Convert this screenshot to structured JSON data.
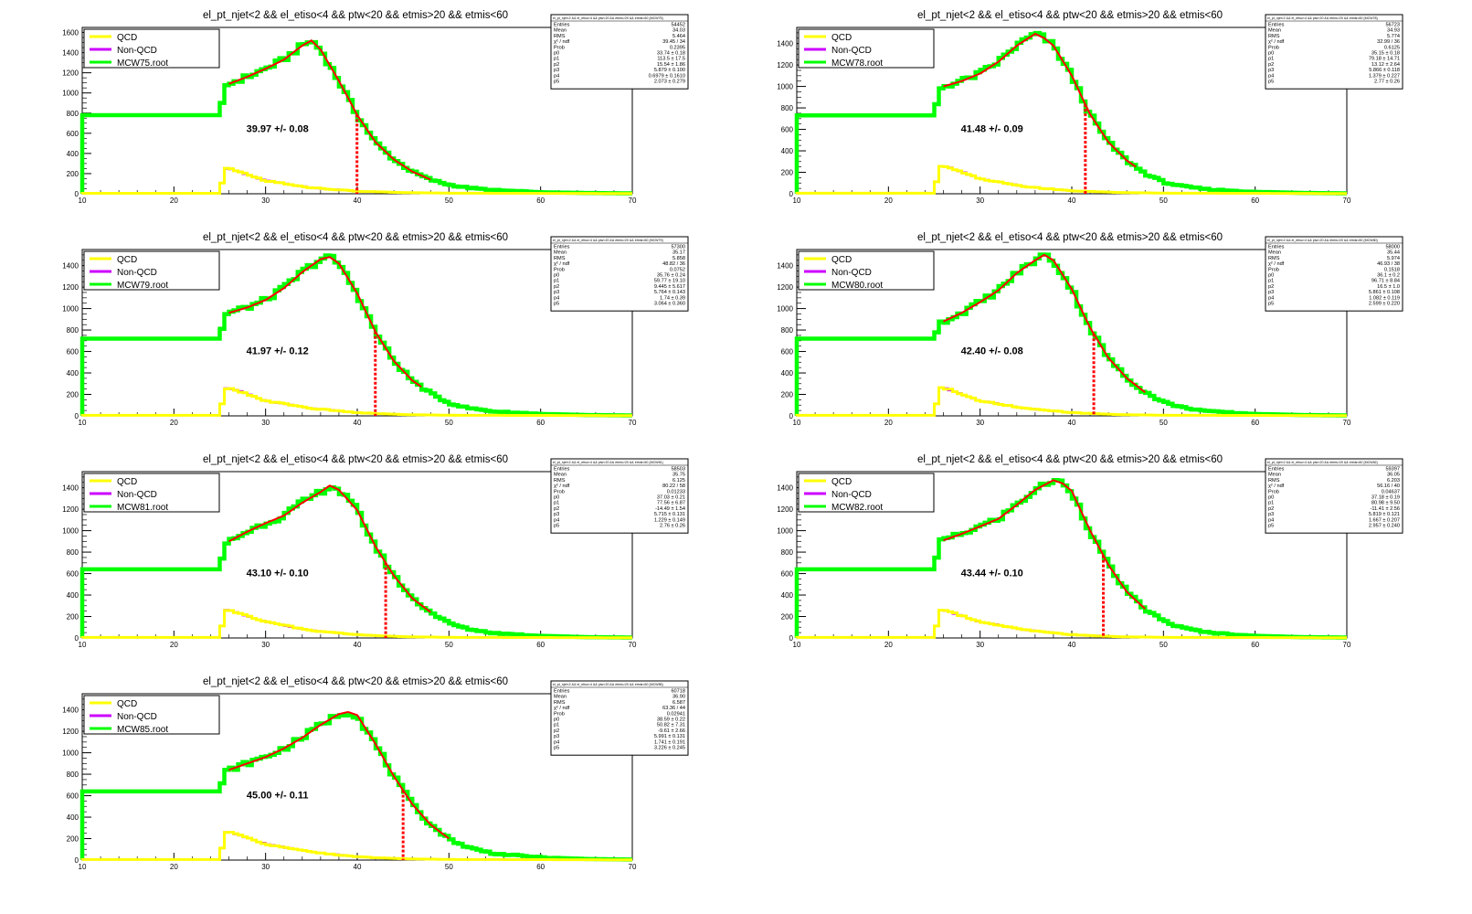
{
  "colors": {
    "qcd": "#ffff00",
    "nonqcd": "#cc00ff",
    "mc": "#00ff00",
    "fit": "#ff0000",
    "marker": "#ff0000",
    "axis": "#000000",
    "background": "#ffffff"
  },
  "chart_data": [
    {
      "type": "line",
      "title": "el_pt_njet<2 && el_etiso<4 && ptw<20 && etmis>20 && etmis<60",
      "legend": [
        "QCD",
        "Non-QCD",
        "MCW75.root"
      ],
      "legend_placement": "top-left",
      "xlim": [
        10,
        70
      ],
      "ylim": [
        0,
        1650
      ],
      "xticks": [
        "10",
        "20",
        "30",
        "40",
        "50",
        "60",
        "70"
      ],
      "yticks": [
        "0",
        "200",
        "400",
        "600",
        "800",
        "1000",
        "1200",
        "1400",
        "1600"
      ],
      "mc_curve": {
        "x": [
          25.0,
          25.6,
          26,
          28,
          30,
          32,
          34,
          35,
          36,
          38,
          40,
          42,
          44,
          46,
          48,
          50,
          52,
          55,
          60,
          65,
          70
        ],
        "y": [
          780,
          1070,
          1090,
          1160,
          1240,
          1330,
          1470,
          1520,
          1430,
          1120,
          780,
          510,
          340,
          220,
          140,
          90,
          60,
          35,
          15,
          8,
          4
        ]
      },
      "qcd_curve": {
        "x": [
          10,
          25.0,
          25.6,
          26.5,
          30,
          35,
          40,
          45,
          50,
          70
        ],
        "y": [
          5,
          5,
          250,
          240,
          130,
          60,
          25,
          12,
          6,
          2
        ]
      },
      "fit_range": [
        26,
        48
      ],
      "marker_x": 39.97,
      "annotation": "39.97 +/-  0.08",
      "stats": {
        "header": "el_pt_njet<2 && el_etiso<4 && ptw<20 && etmis>20 && etmis<60 {MCW75}",
        "rows": [
          [
            "Entries",
            "54452"
          ],
          [
            "Mean",
            "34.03"
          ],
          [
            "RMS",
            "5.464"
          ],
          [
            "χ² / ndf",
            "39.45 / 34"
          ],
          [
            "Prob",
            "0.2395"
          ],
          [
            "p0",
            "33.74 ± 0.18"
          ],
          [
            "p1",
            "113.5 ± 17.5"
          ],
          [
            "p2",
            "15.54 ± 1.86"
          ],
          [
            "p3",
            "5.879 ± 0.100"
          ],
          [
            "p4",
            "0.6979 ± 0.1610"
          ],
          [
            "p5",
            "2.073 ± 0.279"
          ]
        ]
      }
    },
    {
      "type": "line",
      "title": "el_pt_njet<2 && el_etiso<4 && ptw<20 && etmis>20 && etmis<60",
      "legend": [
        "QCD",
        "Non-QCD",
        "MCW78.root"
      ],
      "legend_placement": "top-left",
      "xlim": [
        10,
        70
      ],
      "ylim": [
        0,
        1550
      ],
      "xticks": [
        "10",
        "20",
        "30",
        "40",
        "50",
        "60",
        "70"
      ],
      "yticks": [
        "0",
        "200",
        "400",
        "600",
        "800",
        "1000",
        "1200",
        "1400"
      ],
      "mc_curve": {
        "x": [
          25.0,
          25.6,
          26,
          28,
          30,
          32,
          34,
          36,
          37,
          38,
          40,
          42,
          44,
          46,
          48,
          50,
          52,
          55,
          60,
          65,
          70
        ],
        "y": [
          730,
          980,
          1000,
          1050,
          1120,
          1230,
          1380,
          1490,
          1450,
          1380,
          1100,
          740,
          480,
          310,
          190,
          110,
          70,
          40,
          18,
          8,
          4
        ]
      },
      "qcd_curve": {
        "x": [
          10,
          25.0,
          25.6,
          26.5,
          30,
          35,
          40,
          45,
          50,
          70
        ],
        "y": [
          5,
          5,
          260,
          250,
          140,
          65,
          28,
          12,
          6,
          2
        ]
      },
      "fit_range": [
        26,
        47
      ],
      "marker_x": 41.48,
      "annotation": "41.48 +/-  0.09",
      "stats": {
        "header": "el_pt_njet<2 && el_etiso<4 && ptw<20 && etmis>20 && etmis<60 {MCW78}",
        "rows": [
          [
            "Entries",
            "56723"
          ],
          [
            "Mean",
            "34.93"
          ],
          [
            "RMS",
            "5.774"
          ],
          [
            "χ² / ndf",
            "32.99 / 36"
          ],
          [
            "Prob",
            "0.6125"
          ],
          [
            "p0",
            "35.15 ± 0.18"
          ],
          [
            "p1",
            "79.18 ± 14.71"
          ],
          [
            "p2",
            "13.12 ± 2.64"
          ],
          [
            "p3",
            "5.866 ± 0.118"
          ],
          [
            "p4",
            "1.379 ± 0.227"
          ],
          [
            "p5",
            "2.77 ± 0.26"
          ]
        ]
      }
    },
    {
      "type": "line",
      "title": "el_pt_njet<2 && el_etiso<4 && ptw<20 && etmis>20 && etmis<60",
      "legend": [
        "QCD",
        "Non-QCD",
        "MCW79.root"
      ],
      "legend_placement": "top-left",
      "xlim": [
        10,
        70
      ],
      "ylim": [
        0,
        1550
      ],
      "xticks": [
        "10",
        "20",
        "30",
        "40",
        "50",
        "60",
        "70"
      ],
      "yticks": [
        "0",
        "200",
        "400",
        "600",
        "800",
        "1000",
        "1200",
        "1400"
      ],
      "mc_curve": {
        "x": [
          25.0,
          25.6,
          26,
          28,
          30,
          32,
          34,
          36,
          37,
          38,
          40,
          42,
          44,
          46,
          48,
          50,
          52,
          55,
          60,
          65,
          70
        ],
        "y": [
          720,
          940,
          960,
          1010,
          1080,
          1190,
          1340,
          1460,
          1480,
          1420,
          1140,
          780,
          510,
          330,
          210,
          120,
          75,
          40,
          18,
          8,
          4
        ]
      },
      "qcd_curve": {
        "x": [
          10,
          25.0,
          25.6,
          26.5,
          30,
          35,
          40,
          45,
          50,
          70
        ],
        "y": [
          5,
          5,
          260,
          250,
          140,
          70,
          30,
          12,
          6,
          2
        ]
      },
      "fit_range": [
        26,
        47
      ],
      "marker_x": 41.97,
      "annotation": "41.97 +/-  0.12",
      "stats": {
        "header": "el_pt_njet<2 && el_etiso<4 && ptw<20 && etmis>20 && etmis<60 {MCW79}",
        "rows": [
          [
            "Entries",
            "57300"
          ],
          [
            "Mean",
            "35.17"
          ],
          [
            "RMS",
            "5.858"
          ],
          [
            "χ² / ndf",
            "48.82 / 36"
          ],
          [
            "Prob",
            "0.0752"
          ],
          [
            "p0",
            "35.76 ± 0.24"
          ],
          [
            "p1",
            "59.77 ± 19.10"
          ],
          [
            "p2",
            "9.445 ± 5.617"
          ],
          [
            "p3",
            "5.764 ± 0.143"
          ],
          [
            "p4",
            "1.74 ± 0.39"
          ],
          [
            "p5",
            "3.064 ± 0.360"
          ]
        ]
      }
    },
    {
      "type": "line",
      "title": "el_pt_njet<2 && el_etiso<4 && ptw<20 && etmis>20 && etmis<60",
      "legend": [
        "QCD",
        "Non-QCD",
        "MCW80.root"
      ],
      "legend_placement": "top-left",
      "xlim": [
        10,
        70
      ],
      "ylim": [
        0,
        1550
      ],
      "xticks": [
        "10",
        "20",
        "30",
        "40",
        "50",
        "60",
        "70"
      ],
      "yticks": [
        "0",
        "200",
        "400",
        "600",
        "800",
        "1000",
        "1200",
        "1400"
      ],
      "mc_curve": {
        "x": [
          25.0,
          25.6,
          26,
          28,
          30,
          32,
          34,
          36,
          37,
          38,
          40,
          42,
          44,
          46,
          48,
          50,
          52,
          55,
          60,
          65,
          70
        ],
        "y": [
          720,
          860,
          880,
          960,
          1060,
          1170,
          1330,
          1450,
          1500,
          1450,
          1180,
          820,
          540,
          350,
          220,
          130,
          80,
          42,
          18,
          8,
          4
        ]
      },
      "qcd_curve": {
        "x": [
          10,
          25.0,
          25.6,
          26.5,
          30,
          35,
          40,
          45,
          50,
          70
        ],
        "y": [
          5,
          5,
          260,
          250,
          140,
          70,
          30,
          12,
          6,
          2
        ]
      },
      "fit_range": [
        26,
        48
      ],
      "marker_x": 42.4,
      "annotation": "42.40 +/-  0.08",
      "stats": {
        "header": "el_pt_njet<2 && el_etiso<4 && ptw<20 && etmis>20 && etmis<60 {MCW80}",
        "rows": [
          [
            "Entries",
            "58000"
          ],
          [
            "Mean",
            "35.44"
          ],
          [
            "RMS",
            "5.974"
          ],
          [
            "χ² / ndf",
            "46.93 / 38"
          ],
          [
            "Prob",
            "0.1518"
          ],
          [
            "p0",
            "36.1 ± 0.2"
          ],
          [
            "p1",
            "96.71 ± 8.84"
          ],
          [
            "p2",
            "16.5 ± 1.0"
          ],
          [
            "p3",
            "5.861 ± 0.108"
          ],
          [
            "p4",
            "1.082 ± 0.119"
          ],
          [
            "p5",
            "2.599 ± 0.220"
          ]
        ]
      }
    },
    {
      "type": "line",
      "title": "el_pt_njet<2 && el_etiso<4 && ptw<20 && etmis>20 && etmis<60",
      "legend": [
        "QCD",
        "Non-QCD",
        "MCW81.root"
      ],
      "legend_placement": "top-left",
      "xlim": [
        10,
        70
      ],
      "ylim": [
        0,
        1550
      ],
      "xticks": [
        "10",
        "20",
        "30",
        "40",
        "50",
        "60",
        "70"
      ],
      "yticks": [
        "0",
        "200",
        "400",
        "600",
        "800",
        "1000",
        "1200",
        "1400"
      ],
      "mc_curve": {
        "x": [
          25.0,
          25.6,
          26,
          28,
          30,
          32,
          34,
          36,
          37,
          38,
          40,
          42,
          44,
          46,
          48,
          50,
          52,
          55,
          60,
          65,
          70
        ],
        "y": [
          640,
          880,
          900,
          990,
          1070,
          1140,
          1260,
          1360,
          1420,
          1380,
          1190,
          850,
          580,
          370,
          240,
          140,
          85,
          45,
          20,
          8,
          4
        ]
      },
      "qcd_curve": {
        "x": [
          10,
          25.0,
          25.6,
          26.5,
          30,
          35,
          40,
          45,
          50,
          70
        ],
        "y": [
          5,
          5,
          260,
          250,
          150,
          70,
          30,
          12,
          6,
          2
        ]
      },
      "fit_range": [
        26,
        48
      ],
      "marker_x": 43.1,
      "annotation": "43.10 +/-  0.10",
      "stats": {
        "header": "el_pt_njet<2 && el_etiso<4 && ptw<20 && etmis>20 && etmis<60 {MCW81}",
        "rows": [
          [
            "Entries",
            "58503"
          ],
          [
            "Mean",
            "35.75"
          ],
          [
            "RMS",
            "6.125"
          ],
          [
            "χ² / ndf",
            "80.22 / 58"
          ],
          [
            "Prob",
            "0.01233"
          ],
          [
            "p0",
            "37.03 ± 0.21"
          ],
          [
            "p1",
            "77.56 ± 6.87"
          ],
          [
            "p2",
            "-14.49 ± 1.54"
          ],
          [
            "p3",
            "5.715 ± 0.131"
          ],
          [
            "p4",
            "1.229 ± 0.149"
          ],
          [
            "p5",
            "2.76 ± 0.26"
          ]
        ]
      }
    },
    {
      "type": "line",
      "title": "el_pt_njet<2 && el_etiso<4 && ptw<20 && etmis>20 && etmis<60",
      "legend": [
        "QCD",
        "Non-QCD",
        "MCW82.root"
      ],
      "legend_placement": "top-left",
      "xlim": [
        10,
        70
      ],
      "ylim": [
        0,
        1550
      ],
      "xticks": [
        "10",
        "20",
        "30",
        "40",
        "50",
        "60",
        "70"
      ],
      "yticks": [
        "0",
        "200",
        "400",
        "600",
        "800",
        "1000",
        "1200",
        "1400"
      ],
      "mc_curve": {
        "x": [
          25.0,
          25.6,
          26,
          28,
          30,
          32,
          34,
          36,
          38,
          39,
          40,
          42,
          44,
          46,
          48,
          50,
          52,
          55,
          60,
          65,
          70
        ],
        "y": [
          640,
          900,
          910,
          970,
          1040,
          1110,
          1240,
          1380,
          1470,
          1440,
          1370,
          1000,
          680,
          430,
          270,
          160,
          95,
          50,
          20,
          8,
          4
        ]
      },
      "qcd_curve": {
        "x": [
          10,
          25.0,
          25.6,
          26.5,
          30,
          35,
          40,
          45,
          50,
          70
        ],
        "y": [
          5,
          5,
          260,
          250,
          150,
          75,
          30,
          12,
          6,
          2
        ]
      },
      "fit_range": [
        26,
        48
      ],
      "marker_x": 43.44,
      "annotation": "43.44 +/-  0.10",
      "stats": {
        "header": "el_pt_njet<2 && el_etiso<4 && ptw<20 && etmis>20 && etmis<60 {MCW82}",
        "rows": [
          [
            "Entries",
            "59397"
          ],
          [
            "Mean",
            "36.05"
          ],
          [
            "RMS",
            "6.203"
          ],
          [
            "χ² / ndf",
            "56.16 / 40"
          ],
          [
            "Prob",
            "0.04637"
          ],
          [
            "p0",
            "37.18 ± 0.19"
          ],
          [
            "p1",
            "80.98 ± 9.50"
          ],
          [
            "p2",
            "-11.41 ± 2.56"
          ],
          [
            "p3",
            "5.819 ± 0.121"
          ],
          [
            "p4",
            "1.667 ± 0.207"
          ],
          [
            "p5",
            "2.957 ± 0.240"
          ]
        ]
      }
    },
    {
      "type": "line",
      "title": "el_pt_njet<2 && el_etiso<4 && ptw<20 && etmis>20 && etmis<60",
      "legend": [
        "QCD",
        "Non-QCD",
        "MCW85.root"
      ],
      "legend_placement": "top-left",
      "xlim": [
        10,
        70
      ],
      "ylim": [
        0,
        1550
      ],
      "xticks": [
        "10",
        "20",
        "30",
        "40",
        "50",
        "60",
        "70"
      ],
      "yticks": [
        "0",
        "200",
        "400",
        "600",
        "800",
        "1000",
        "1200",
        "1400"
      ],
      "mc_curve": {
        "x": [
          25.0,
          25.6,
          26,
          28,
          30,
          32,
          34,
          36,
          38,
          39,
          40,
          42,
          44,
          46,
          48,
          50,
          52,
          55,
          60,
          65,
          70
        ],
        "y": [
          640,
          820,
          840,
          900,
          960,
          1040,
          1140,
          1260,
          1360,
          1380,
          1350,
          1080,
          780,
          520,
          330,
          200,
          120,
          60,
          25,
          10,
          5
        ]
      },
      "qcd_curve": {
        "x": [
          10,
          25.0,
          25.6,
          26.5,
          30,
          35,
          40,
          45,
          50,
          70
        ],
        "y": [
          5,
          5,
          260,
          250,
          150,
          75,
          30,
          12,
          6,
          2
        ]
      },
      "fit_range": [
        26,
        50
      ],
      "marker_x": 45.0,
      "annotation": "45.00 +/-  0.11",
      "stats": {
        "header": "el_pt_njet<2 && el_etiso<4 && ptw<20 && etmis>20 && etmis<60 {MCW85}",
        "rows": [
          [
            "Entries",
            "60718"
          ],
          [
            "Mean",
            "36.90"
          ],
          [
            "RMS",
            "6.587"
          ],
          [
            "χ² / ndf",
            "63.36 / 44"
          ],
          [
            "Prob",
            "0.02941"
          ],
          [
            "p0",
            "38.59 ± 0.22"
          ],
          [
            "p1",
            "50.82 ± 7.31"
          ],
          [
            "p2",
            "-9.61 ± 2.66"
          ],
          [
            "p3",
            "5.991 ± 0.131"
          ],
          [
            "p4",
            "1.741 ± 0.191"
          ],
          [
            "p5",
            "3.226 ± 0.245"
          ]
        ]
      }
    }
  ]
}
